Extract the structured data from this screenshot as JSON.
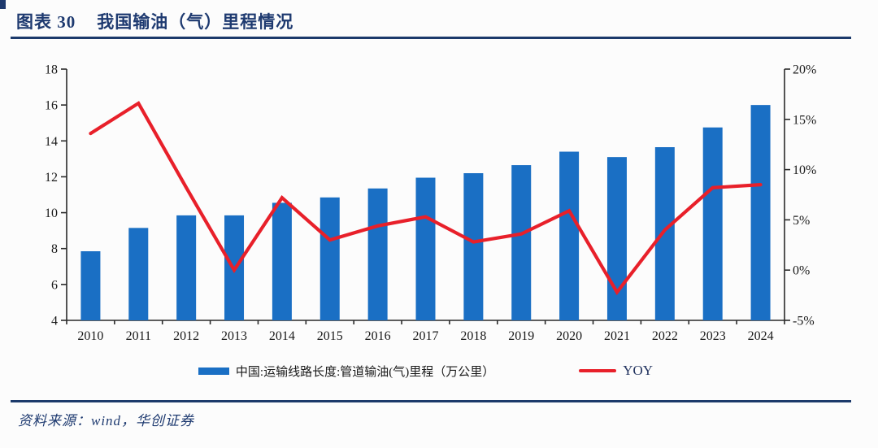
{
  "figure": {
    "label": "图表 30",
    "title": "我国输油（气）里程情况",
    "source": "资料来源：wind，华创证券"
  },
  "colors": {
    "bar": "#1a6fc4",
    "line": "#e8202a",
    "navy": "#1e3a70",
    "axis": "#2a2a2a",
    "tick_text": "#1a1a1a"
  },
  "chart_data": {
    "type": "bar",
    "categories": [
      "2010",
      "2011",
      "2012",
      "2013",
      "2014",
      "2015",
      "2016",
      "2017",
      "2018",
      "2019",
      "2020",
      "2021",
      "2022",
      "2023",
      "2024"
    ],
    "series": [
      {
        "name": "中国:运输线路长度:管道输油(气)里程（万公里）",
        "type": "bar",
        "axis": "left",
        "values": [
          7.85,
          9.15,
          9.85,
          9.85,
          10.55,
          10.85,
          11.35,
          11.95,
          12.2,
          12.65,
          13.4,
          13.1,
          13.65,
          14.75,
          16.0
        ]
      },
      {
        "name": "YOY",
        "type": "line",
        "axis": "right",
        "values": [
          13.6,
          16.6,
          8.2,
          0.0,
          7.2,
          3.0,
          4.4,
          5.3,
          2.8,
          3.6,
          5.9,
          -2.2,
          4.0,
          8.2,
          8.5
        ]
      }
    ],
    "left_axis": {
      "min": 4,
      "max": 18,
      "ticks": [
        "4",
        "6",
        "8",
        "10",
        "12",
        "14",
        "16",
        "18"
      ]
    },
    "right_axis": {
      "min": -5,
      "max": 20,
      "ticks": [
        "-5%",
        "0%",
        "5%",
        "10%",
        "15%",
        "20%"
      ]
    },
    "grid": false,
    "legend_position": "bottom"
  }
}
